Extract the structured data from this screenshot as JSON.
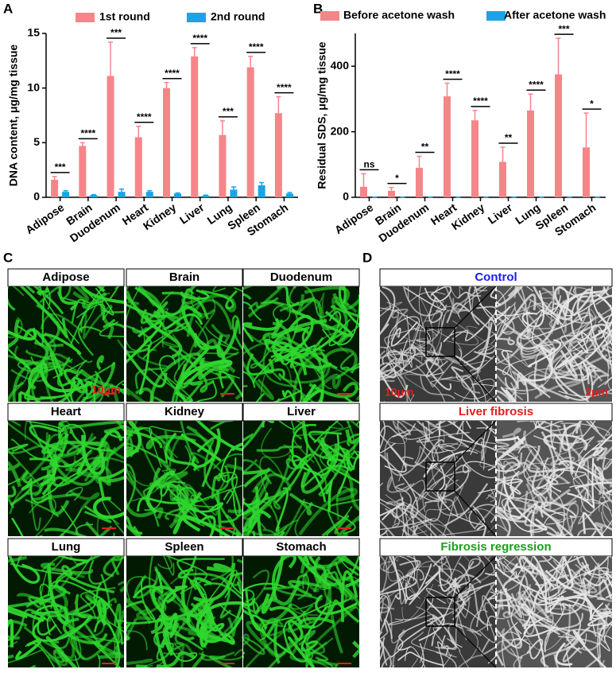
{
  "panel_labels": [
    "A",
    "B",
    "C",
    "D"
  ],
  "chart_data": [
    {
      "type": "bar",
      "y_label": "DNA content, μg/mg tissue",
      "categories": [
        "Adipose",
        "Brain",
        "Duodenum",
        "Heart",
        "Kidney",
        "Liver",
        "Lung",
        "Spleen",
        "Stomach"
      ],
      "series": [
        {
          "name": "1st round",
          "color": "#f4868a",
          "values": [
            1.6,
            4.7,
            11.1,
            5.5,
            10.0,
            12.9,
            5.7,
            11.9,
            7.7
          ],
          "errors": [
            0.3,
            0.3,
            3.1,
            1.0,
            0.5,
            0.8,
            1.3,
            1.0,
            1.5
          ]
        },
        {
          "name": "2nd round",
          "color": "#1aa3e8",
          "values": [
            0.5,
            0.2,
            0.5,
            0.5,
            0.35,
            0.15,
            0.7,
            1.1,
            0.35
          ],
          "errors": [
            0.1,
            0.05,
            0.25,
            0.1,
            0.05,
            0.05,
            0.25,
            0.25,
            0.1
          ]
        }
      ],
      "significance": [
        "***",
        "****",
        "***",
        "****",
        "****",
        "****",
        "***",
        "****",
        "****"
      ],
      "ylim": [
        0,
        15
      ],
      "yticks": [
        0,
        5,
        10,
        15
      ]
    },
    {
      "type": "bar",
      "y_label": "Residual SDS, μg/mg tissue",
      "categories": [
        "Adipose",
        "Brain",
        "Duodenum",
        "Heart",
        "Kidney",
        "Liver",
        "Lung",
        "Spleen",
        "Stomach"
      ],
      "series": [
        {
          "name": "Before acetone wash",
          "color": "#f4868a",
          "values": [
            32,
            20,
            90,
            308,
            235,
            108,
            265,
            375,
            152
          ],
          "errors": [
            40,
            10,
            35,
            40,
            30,
            45,
            50,
            110,
            105
          ]
        },
        {
          "name": "After acetone wash",
          "color": "#1aa3e8",
          "values": [
            0,
            0,
            0,
            0,
            0,
            0,
            0,
            0,
            0
          ],
          "errors": [
            0,
            0,
            0,
            0,
            0,
            0,
            0,
            0,
            0
          ]
        }
      ],
      "significance": [
        "ns",
        "*",
        "**",
        "****",
        "****",
        "**",
        "****",
        "***",
        "*"
      ],
      "ylim": [
        0,
        500
      ],
      "yticks": [
        0,
        200,
        400
      ]
    }
  ],
  "panel_c": {
    "titles": [
      "Adipose",
      "Brain",
      "Duodenum",
      "Heart",
      "Kidney",
      "Liver",
      "Lung",
      "Spleen",
      "Stomach"
    ],
    "scale_bar": "10μm"
  },
  "panel_d": {
    "titles": [
      "Control",
      "Liver fibrosis",
      "Fibrosis regression"
    ],
    "scale_bars": [
      "10μm",
      "2μm"
    ]
  }
}
